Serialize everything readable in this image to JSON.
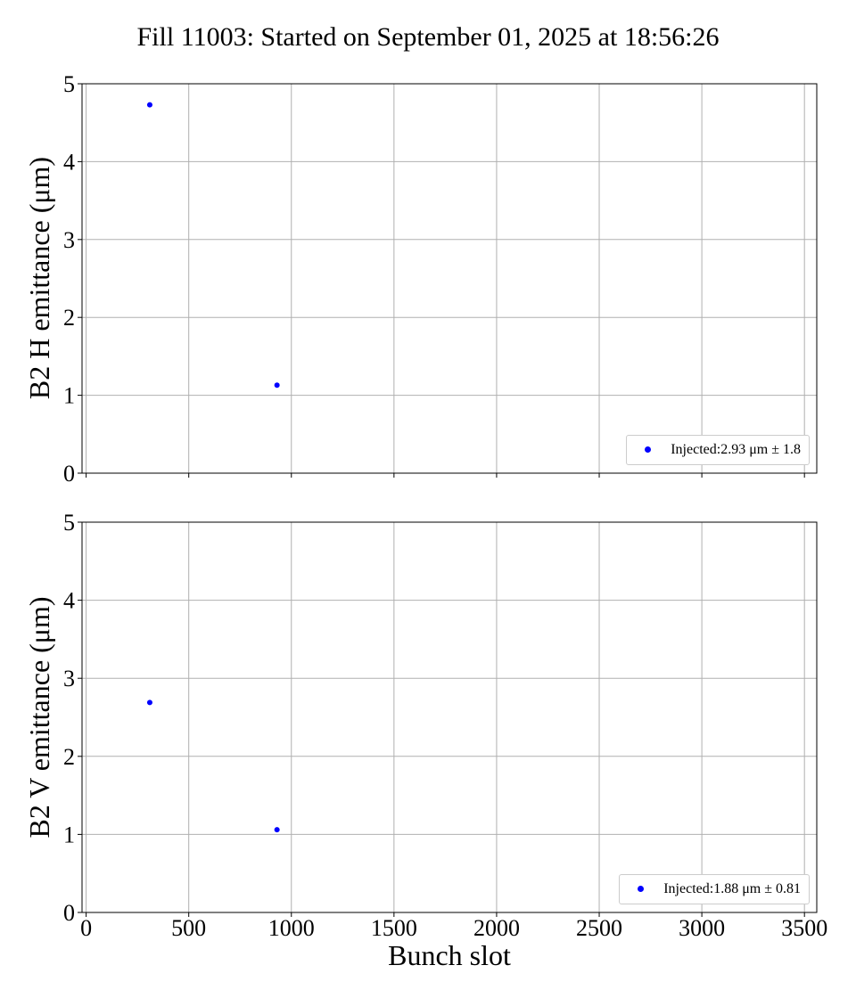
{
  "title": "Fill 11003: Started on September 01, 2025 at 18:56:26",
  "xlabel": "Bunch slot",
  "colors": {
    "points": "#0000ff",
    "grid": "#b0b0b0",
    "axes": "#000000"
  },
  "chart_data": [
    {
      "type": "scatter",
      "ylabel": "B2 H emittance (μm)",
      "xlim": [
        -20,
        3560
      ],
      "ylim": [
        0,
        5
      ],
      "x_ticks": [
        0,
        500,
        1000,
        1500,
        2000,
        2500,
        3000,
        3500
      ],
      "y_ticks": [
        0,
        1,
        2,
        3,
        4,
        5
      ],
      "grid": true,
      "legend_position": "lower-right",
      "series": [
        {
          "name": "Injected:2.93 μm ± 1.8",
          "x": [
            310,
            930
          ],
          "y": [
            4.73,
            1.13
          ]
        }
      ]
    },
    {
      "type": "scatter",
      "ylabel": "B2 V emittance (μm)",
      "xlim": [
        -20,
        3560
      ],
      "ylim": [
        0,
        5
      ],
      "x_ticks": [
        0,
        500,
        1000,
        1500,
        2000,
        2500,
        3000,
        3500
      ],
      "y_ticks": [
        0,
        1,
        2,
        3,
        4,
        5
      ],
      "grid": true,
      "legend_position": "lower-right",
      "series": [
        {
          "name": "Injected:1.88 μm ± 0.81",
          "x": [
            310,
            930
          ],
          "y": [
            2.69,
            1.06
          ]
        }
      ]
    }
  ]
}
